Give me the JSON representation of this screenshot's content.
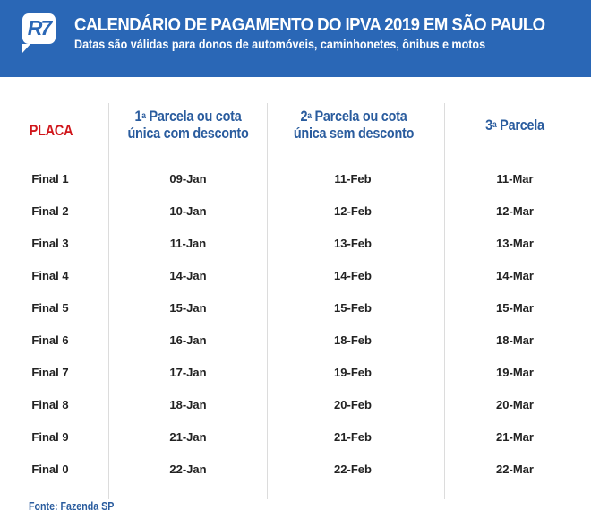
{
  "header": {
    "logo": "R7",
    "title": "CALENDÁRIO DE PAGAMENTO DO IPVA 2019 EM SÃO PAULO",
    "subtitle": "Datas são válidas para donos de automóveis, caminhonetes, ônibus e motos"
  },
  "columns": {
    "placa": "PLACA",
    "col1_num": "1",
    "col1_sup": "a",
    "col1_rest_line1": " Parcela ou cota",
    "col1_line2": "única com desconto",
    "col2_num": "2",
    "col2_sup": "a",
    "col2_rest_line1": " Parcela ou cota",
    "col2_line2": "única sem desconto",
    "col3_num": "3",
    "col3_sup": "a",
    "col3_rest": " Parcela"
  },
  "rows": [
    {
      "placa": "Final 1",
      "p1": "09-Jan",
      "p2": "11-Feb",
      "p3": "11-Mar"
    },
    {
      "placa": "Final 2",
      "p1": "10-Jan",
      "p2": "12-Feb",
      "p3": "12-Mar"
    },
    {
      "placa": "Final 3",
      "p1": "11-Jan",
      "p2": "13-Feb",
      "p3": "13-Mar"
    },
    {
      "placa": "Final 4",
      "p1": "14-Jan",
      "p2": "14-Feb",
      "p3": "14-Mar"
    },
    {
      "placa": "Final 5",
      "p1": "15-Jan",
      "p2": "15-Feb",
      "p3": "15-Mar"
    },
    {
      "placa": "Final 6",
      "p1": "16-Jan",
      "p2": "18-Feb",
      "p3": "18-Mar"
    },
    {
      "placa": "Final 7",
      "p1": "17-Jan",
      "p2": "19-Feb",
      "p3": "19-Mar"
    },
    {
      "placa": "Final 8",
      "p1": "18-Jan",
      "p2": "20-Feb",
      "p3": "20-Mar"
    },
    {
      "placa": "Final 9",
      "p1": "21-Jan",
      "p2": "21-Feb",
      "p3": "21-Mar"
    },
    {
      "placa": "Final 0",
      "p1": "22-Jan",
      "p2": "22-Feb",
      "p3": "22-Mar"
    }
  ],
  "source": "Fonte: Fazenda SP",
  "colors": {
    "banner": "#2a67b6",
    "header_text": "#2a5c9e",
    "placa": "#d0161b"
  }
}
